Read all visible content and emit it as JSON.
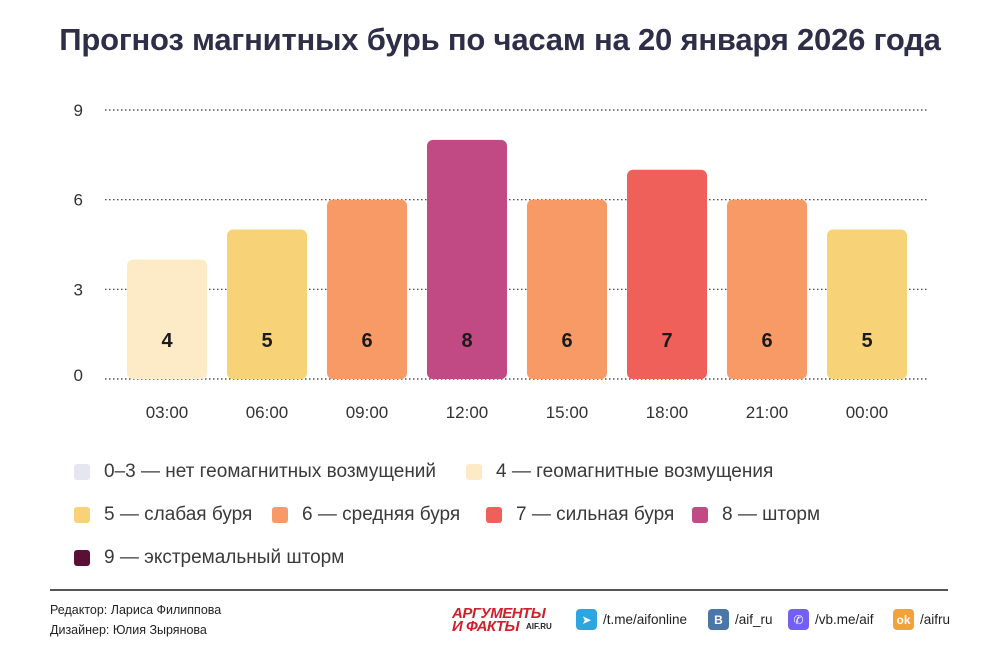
{
  "title": "Прогноз магнитных бурь по часам на 20 января 2026 года",
  "chart_data": {
    "type": "bar",
    "categories": [
      "03:00",
      "06:00",
      "09:00",
      "12:00",
      "15:00",
      "18:00",
      "21:00",
      "00:00"
    ],
    "values": [
      4,
      5,
      6,
      8,
      6,
      7,
      6,
      5
    ],
    "data_labels": [
      "4",
      "5",
      "6",
      "8",
      "6",
      "7",
      "6",
      "5"
    ],
    "yticks": [
      0,
      3,
      6,
      9
    ],
    "ytick_labels": [
      "0",
      "3",
      "6",
      "9"
    ],
    "ylim": [
      0,
      9
    ],
    "grid": "horizontal dotted",
    "level_colors": {
      "4": "#fdebc8",
      "5": "#f8d277",
      "6": "#f89a66",
      "7": "#f0605a",
      "8": "#c24a84"
    }
  },
  "legend": [
    {
      "label": "0–3 — нет геомагнитных возмущений",
      "color": "#e6e6f0"
    },
    {
      "label": "4 — геомагнитные возмущения",
      "color": "#fdebc8"
    },
    {
      "label": "5 — слабая буря",
      "color": "#f8d277"
    },
    {
      "label": "6 — средняя буря",
      "color": "#f89a66"
    },
    {
      "label": "7 — сильная буря",
      "color": "#f0605a"
    },
    {
      "label": "8 — шторм",
      "color": "#c24a84"
    },
    {
      "label": "9 — экстремальный шторм",
      "color": "#5a0f35"
    }
  ],
  "footer": {
    "editor": "Редактор: Лариса Филиппова",
    "designer": "Дизайнер: Юлия Зырянова",
    "logo_line1": "АРГУМЕНТЫ",
    "logo_line2": "И ФАКТЫ",
    "logo_site": "AIF.RU",
    "social": [
      {
        "label": "/t.me/aifonline",
        "icon": "telegram-icon",
        "color": "#2ca5e0",
        "glyph": "➤"
      },
      {
        "label": "/aif_ru",
        "icon": "vk-icon",
        "color": "#4a76a8",
        "glyph": "B"
      },
      {
        "label": "/vb.me/aif",
        "icon": "viber-icon",
        "color": "#7360f2",
        "glyph": "✆"
      },
      {
        "label": "/aifru",
        "icon": "odnoklassniki-icon",
        "color": "#f2a23a",
        "glyph": "ok"
      }
    ]
  }
}
